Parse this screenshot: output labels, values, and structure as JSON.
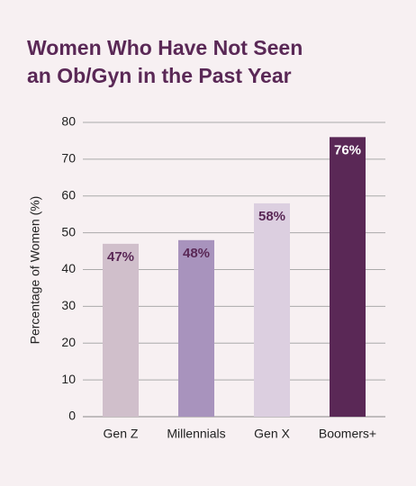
{
  "chart_data": {
    "type": "bar",
    "title": [
      "Women Who Have Not Seen",
      "an Ob/Gyn in the Past Year"
    ],
    "ylabel": "Percentage of Women (%)",
    "categories": [
      "Gen Z",
      "Millennials",
      "Gen X",
      "Boomers+"
    ],
    "values": [
      47,
      48,
      58,
      76
    ],
    "value_labels": [
      "47%",
      "48%",
      "58%",
      "76%"
    ],
    "colors": [
      "#d0bfcb",
      "#a893bd",
      "#dccfe0",
      "#5a2856"
    ],
    "value_label_colors": [
      "#5a2856",
      "#5a2856",
      "#5a2856",
      "#ffffff"
    ],
    "ylim": [
      0,
      80
    ],
    "yticks": [
      0,
      10,
      20,
      30,
      40,
      50,
      60,
      70,
      80
    ],
    "grid": true
  }
}
